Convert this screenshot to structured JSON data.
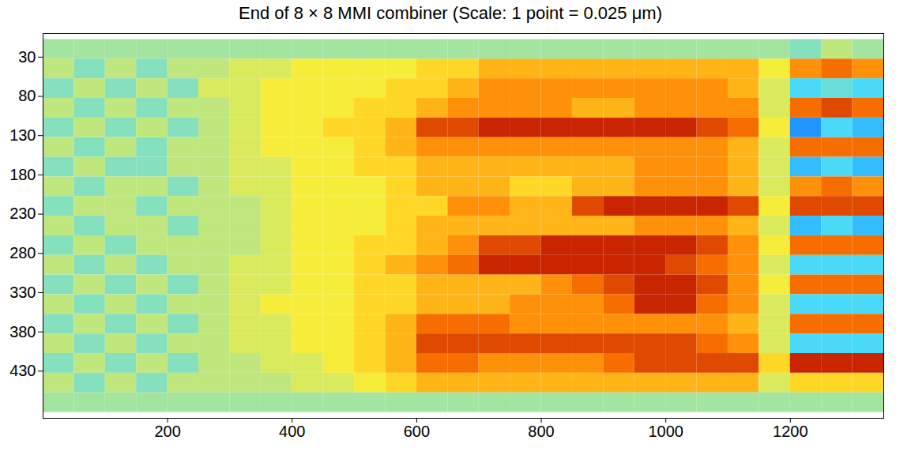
{
  "chart_data": {
    "type": "heatmap",
    "title": "End of 8 × 8 MMI combiner (Scale: 1 point = 0.025 μm)",
    "x": [
      25,
      75,
      125,
      175,
      225,
      275,
      325,
      375,
      425,
      475,
      525,
      575,
      625,
      675,
      725,
      775,
      825,
      875,
      925,
      975,
      1025,
      1075,
      1125,
      1175,
      1225,
      1275,
      1325
    ],
    "y": [
      20,
      45,
      70,
      95,
      120,
      145,
      170,
      195,
      220,
      245,
      270,
      295,
      320,
      345,
      370,
      395,
      420,
      445,
      470
    ],
    "values": [
      [
        0,
        0,
        0,
        0,
        0,
        0,
        0,
        0,
        0,
        0,
        0,
        0,
        0,
        0,
        0,
        0,
        0,
        0,
        0,
        0,
        0,
        0,
        0,
        0,
        -0.1,
        0.1,
        0
      ],
      [
        0.1,
        -0.1,
        0.1,
        -0.1,
        0.1,
        0.1,
        0.2,
        0.2,
        0.3,
        0.3,
        0.3,
        0.3,
        0.4,
        0.4,
        0.5,
        0.5,
        0.5,
        0.5,
        0.5,
        0.5,
        0.5,
        0.5,
        0.5,
        0.3,
        0.6,
        0.7,
        0.6
      ],
      [
        -0.1,
        0.1,
        -0.1,
        0.1,
        -0.1,
        0.2,
        0.2,
        0.3,
        0.3,
        0.3,
        0.3,
        0.4,
        0.4,
        0.5,
        0.6,
        0.6,
        0.6,
        0.6,
        0.6,
        0.6,
        0.6,
        0.6,
        0.5,
        0.2,
        -0.3,
        -0.2,
        -0.3
      ],
      [
        0.1,
        -0.1,
        0.1,
        -0.1,
        0.1,
        0.1,
        0.2,
        0.3,
        0.3,
        0.3,
        0.4,
        0.4,
        0.5,
        0.6,
        0.6,
        0.6,
        0.6,
        0.5,
        0.5,
        0.6,
        0.6,
        0.6,
        0.6,
        0.2,
        0.7,
        0.8,
        0.7
      ],
      [
        -0.1,
        0.1,
        -0.1,
        0.1,
        -0.1,
        0.1,
        0.2,
        0.3,
        0.3,
        0.4,
        0.4,
        0.5,
        0.8,
        0.8,
        0.9,
        0.9,
        0.9,
        0.9,
        0.9,
        0.9,
        0.9,
        0.8,
        0.7,
        0.3,
        -0.5,
        -0.3,
        -0.4
      ],
      [
        0.1,
        -0.1,
        0.1,
        -0.1,
        0.1,
        0.1,
        0.2,
        0.3,
        0.3,
        0.3,
        0.4,
        0.5,
        0.6,
        0.6,
        0.6,
        0.6,
        0.6,
        0.6,
        0.6,
        0.6,
        0.6,
        0.6,
        0.5,
        0.2,
        0.7,
        0.7,
        0.7
      ],
      [
        -0.1,
        0.1,
        -0.1,
        -0.1,
        0.1,
        0.1,
        0.2,
        0.2,
        0.3,
        0.3,
        0.4,
        0.4,
        0.5,
        0.5,
        0.5,
        0.5,
        0.5,
        0.5,
        0.5,
        0.6,
        0.6,
        0.6,
        0.5,
        0.2,
        -0.4,
        -0.3,
        -0.4
      ],
      [
        0.1,
        -0.1,
        0.1,
        0.1,
        -0.1,
        0.1,
        0.2,
        0.2,
        0.3,
        0.3,
        0.3,
        0.4,
        0.5,
        0.5,
        0.5,
        0.4,
        0.4,
        0.5,
        0.5,
        0.6,
        0.6,
        0.6,
        0.5,
        0.2,
        0.6,
        0.7,
        0.6
      ],
      [
        -0.1,
        0.1,
        0.1,
        -0.1,
        0.1,
        0.1,
        0.1,
        0.2,
        0.3,
        0.3,
        0.3,
        0.4,
        0.4,
        0.6,
        0.6,
        0.5,
        0.5,
        0.8,
        0.9,
        0.9,
        0.9,
        0.9,
        0.8,
        0.3,
        0.8,
        0.8,
        0.8
      ],
      [
        0.1,
        -0.1,
        0.1,
        0.1,
        -0.1,
        0.1,
        0.1,
        0.2,
        0.3,
        0.3,
        0.3,
        0.4,
        0.5,
        0.5,
        0.5,
        0.5,
        0.5,
        0.5,
        0.5,
        0.6,
        0.6,
        0.6,
        0.5,
        0.2,
        -0.4,
        -0.3,
        -0.4
      ],
      [
        -0.1,
        0.1,
        -0.1,
        0.1,
        0.1,
        0.1,
        0.1,
        0.2,
        0.3,
        0.3,
        0.4,
        0.4,
        0.5,
        0.6,
        0.8,
        0.8,
        0.9,
        0.9,
        0.9,
        0.9,
        0.9,
        0.8,
        0.6,
        0.3,
        0.7,
        0.7,
        0.7
      ],
      [
        0.1,
        -0.1,
        0.1,
        -0.1,
        0.1,
        0.1,
        0.2,
        0.2,
        0.3,
        0.3,
        0.4,
        0.5,
        0.6,
        0.7,
        0.9,
        0.9,
        0.9,
        0.9,
        0.9,
        0.9,
        0.8,
        0.7,
        0.6,
        0.2,
        -0.3,
        -0.3,
        -0.3
      ],
      [
        -0.1,
        0.1,
        -0.1,
        0.1,
        -0.1,
        0.1,
        0.2,
        0.2,
        0.3,
        0.3,
        0.4,
        0.4,
        0.5,
        0.5,
        0.5,
        0.5,
        0.6,
        0.7,
        0.8,
        0.9,
        0.9,
        0.8,
        0.6,
        0.3,
        0.7,
        0.7,
        0.7
      ],
      [
        0.1,
        -0.1,
        0.1,
        -0.1,
        0.1,
        0.1,
        0.2,
        0.3,
        0.3,
        0.3,
        0.4,
        0.4,
        0.5,
        0.5,
        0.5,
        0.6,
        0.6,
        0.6,
        0.7,
        0.9,
        0.9,
        0.7,
        0.6,
        0.2,
        -0.3,
        -0.3,
        -0.3
      ],
      [
        -0.1,
        0.1,
        -0.1,
        0.1,
        -0.1,
        0.1,
        0.2,
        0.2,
        0.3,
        0.3,
        0.4,
        0.5,
        0.7,
        0.7,
        0.7,
        0.6,
        0.6,
        0.6,
        0.6,
        0.6,
        0.6,
        0.6,
        0.5,
        0.2,
        0.7,
        0.7,
        0.7
      ],
      [
        0.1,
        -0.1,
        0.1,
        -0.1,
        0.1,
        0.1,
        0.2,
        0.2,
        0.3,
        0.3,
        0.4,
        0.5,
        0.8,
        0.8,
        0.8,
        0.8,
        0.8,
        0.8,
        0.8,
        0.8,
        0.8,
        0.7,
        0.6,
        0.2,
        -0.3,
        -0.3,
        -0.3
      ],
      [
        -0.1,
        0.1,
        -0.1,
        0.1,
        -0.1,
        0.1,
        0.1,
        0.2,
        0.2,
        0.3,
        0.4,
        0.5,
        0.7,
        0.7,
        0.6,
        0.6,
        0.6,
        0.6,
        0.7,
        0.8,
        0.8,
        0.8,
        0.8,
        0.4,
        0.9,
        0.9,
        0.9
      ],
      [
        0.1,
        -0.1,
        0.1,
        -0.1,
        0.1,
        0.1,
        0.1,
        0.1,
        0.2,
        0.2,
        0.3,
        0.4,
        0.5,
        0.5,
        0.5,
        0.5,
        0.5,
        0.5,
        0.5,
        0.5,
        0.5,
        0.5,
        0.5,
        0.2,
        0.4,
        0.4,
        0.4
      ],
      [
        0,
        0,
        0,
        0,
        0,
        0,
        0,
        0,
        0,
        0,
        0,
        0,
        0,
        0,
        0,
        0,
        0,
        0,
        0,
        0,
        0,
        0,
        0,
        0,
        0,
        0,
        0
      ]
    ],
    "xlim": [
      0,
      1350
    ],
    "ylim": [
      0,
      490
    ],
    "xticks": [
      200,
      400,
      600,
      800,
      1000,
      1200
    ],
    "yticks": [
      30,
      80,
      130,
      180,
      230,
      280,
      330,
      380,
      430
    ],
    "color_range": [
      -1,
      1
    ]
  }
}
